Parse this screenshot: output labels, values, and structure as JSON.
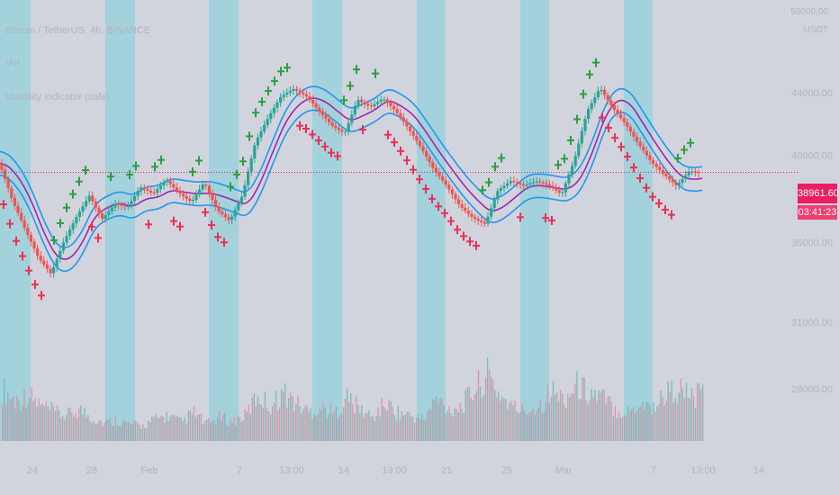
{
  "chart_data": {
    "type": "candlestick",
    "title": "Bitcoin / TetherUS, 4h, BINANCE",
    "indicators": [
      "Vol",
      "Volatility indicator (safe)"
    ],
    "y_axis": {
      "unit": "USDT",
      "top_label": "50000.00",
      "ticks": [
        44000,
        40000,
        35000,
        31000,
        28000
      ],
      "tick_labels": [
        "44000.00",
        "40000.00",
        "35000.00",
        "31000.00",
        "28000.00"
      ],
      "scale": "log"
    },
    "x_axis": {
      "tick_labels": [
        "24",
        "28",
        "Feb",
        "7",
        "13:00",
        "14",
        "13:00",
        "21",
        "25",
        "Mar",
        "7",
        "13:00",
        "14"
      ]
    },
    "last_price": "38961.60",
    "countdown": "03:41:23",
    "colors": {
      "background": "#d1d4dc",
      "up": "#26a69a",
      "down": "#ef5350",
      "band_outer": "#2196f3",
      "band_mid": "#9c27b0",
      "session_bg": "#a3d2dc",
      "marker_up": "#2e9e3e",
      "marker_down": "#ee2f55",
      "price_line": "#e91e63"
    },
    "series": [
      {
        "name": "Bitcoin / TetherUS",
        "values": [
          39500,
          37200,
          35500,
          34000,
          33200,
          35000,
          36500,
          37800,
          36500,
          37300,
          37000,
          38000,
          37500,
          38300,
          37600,
          37200,
          38500,
          37000,
          36400,
          37800,
          40800,
          42200,
          43500,
          44000,
          43600,
          42800,
          42000,
          41600,
          43800,
          43200,
          43600,
          42600,
          41400,
          40200,
          39000,
          38200,
          37200,
          36600,
          36200,
          38000,
          38400,
          38000,
          38200,
          38000,
          37600,
          39800,
          43000,
          44600,
          43200,
          42000,
          40600,
          39400,
          38600,
          38000,
          39000,
          39000
        ]
      },
      {
        "name": "Volume",
        "values": [
          0.62,
          0.48,
          0.55,
          0.42,
          0.35,
          0.3,
          0.38,
          0.28,
          0.22,
          0.25,
          0.2,
          0.18,
          0.26,
          0.3,
          0.22,
          0.34,
          0.2,
          0.28,
          0.24,
          0.3,
          0.55,
          0.42,
          0.58,
          0.45,
          0.35,
          0.4,
          0.32,
          0.52,
          0.38,
          0.28,
          0.45,
          0.34,
          0.3,
          0.26,
          0.5,
          0.38,
          0.42,
          0.62,
          0.78,
          0.55,
          0.4,
          0.36,
          0.42,
          0.6,
          0.5,
          0.66,
          0.58,
          0.52,
          0.38,
          0.34,
          0.46,
          0.4,
          0.58,
          0.62,
          0.52,
          0.56
        ]
      }
    ]
  }
}
